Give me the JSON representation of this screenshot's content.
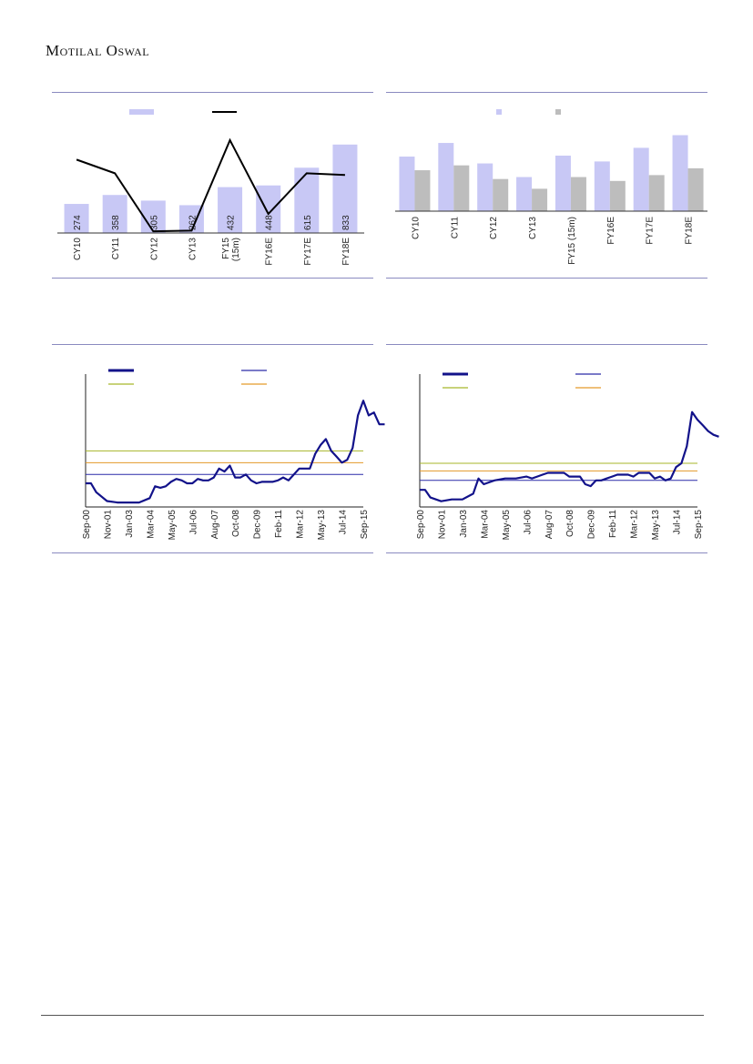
{
  "header": {
    "brand": "Motilal Oswal"
  },
  "colors": {
    "panel_rule": "#8a8ac0",
    "bar_lavender": "#c8c8f5",
    "bar_grey": "#bdbdbd",
    "line_black": "#000000",
    "pe_line": "#12128a",
    "avg_line": "#2a2aa8",
    "sd_green": "#a7b62a",
    "sd_orange": "#e39a2a"
  },
  "chart_data": [
    {
      "id": "chart1",
      "type": "bar",
      "categories": [
        "CY10",
        "CY11",
        "CY12",
        "CY13",
        "FY15 (15m)",
        "FY16E",
        "FY17E",
        "FY18E"
      ],
      "series": [
        {
          "type": "bar",
          "values": [
            274,
            358,
            305,
            262,
            432,
            448,
            615,
            833
          ],
          "labels": [
            "274",
            "358",
            "305",
            "262",
            "432",
            "448",
            "615",
            "833"
          ]
        },
        {
          "type": "line",
          "values": [
            21.5,
            17.5,
            0.5,
            0.7,
            27.2,
            5.6,
            17.5,
            17.0
          ]
        }
      ],
      "bar_ylim": [
        0,
        900
      ],
      "line_ylim": [
        0,
        28
      ],
      "legend_position": "top"
    },
    {
      "id": "chart2",
      "type": "bar",
      "categories": [
        "CY10",
        "CY11",
        "CY12",
        "CY13",
        "FY15 (15m)",
        "FY16E",
        "FY17E",
        "FY18E"
      ],
      "series": [
        {
          "values": [
            56,
            70,
            49,
            35,
            57,
            51,
            65,
            78
          ]
        },
        {
          "values": [
            42,
            47,
            33,
            23,
            35,
            31,
            37,
            44
          ]
        }
      ],
      "ylim": [
        0,
        85
      ],
      "legend_position": "top"
    },
    {
      "id": "chart3",
      "type": "line",
      "x_tick_labels": [
        "Sep-00",
        "Nov-01",
        "Jan-03",
        "Mar-04",
        "May-05",
        "Jul-06",
        "Aug-07",
        "Oct-08",
        "Dec-09",
        "Feb-11",
        "Mar-12",
        "May-13",
        "Jul-14",
        "Sep-15"
      ],
      "ylim": [
        0,
        45
      ],
      "series": [
        {
          "key": "pe",
          "x": [
            0,
            0.25,
            0.5,
            1,
            1.5,
            2,
            2.5,
            3,
            3.25,
            3.5,
            3.75,
            4,
            4.25,
            4.5,
            4.75,
            5,
            5.25,
            5.5,
            5.75,
            6,
            6.25,
            6.5,
            6.75,
            7,
            7.25,
            7.5,
            7.75,
            8,
            8.25,
            8.5,
            8.75,
            9,
            9.25,
            9.5,
            9.75,
            10,
            10.25,
            10.5,
            10.75,
            11,
            11.25,
            11.5,
            11.75,
            12,
            12.25,
            12.5,
            12.75,
            13,
            13.25,
            13.5,
            13.75,
            14
          ],
          "values": [
            8,
            8,
            5,
            2,
            1.5,
            1.5,
            1.5,
            3,
            7,
            6.5,
            7,
            8.5,
            9.5,
            9,
            8,
            8,
            9.5,
            9,
            9,
            10,
            13,
            12,
            14,
            10,
            10,
            11,
            9,
            8,
            8.5,
            8.5,
            8.5,
            9,
            10,
            9,
            11,
            13,
            13,
            13,
            18,
            21,
            23,
            19,
            17,
            15,
            16,
            20,
            31,
            36,
            31,
            32,
            28,
            28
          ]
        },
        {
          "key": "avg",
          "values": [
            11,
            11
          ]
        },
        {
          "key": "plus1sd",
          "values": [
            15,
            15
          ]
        },
        {
          "key": "plus2sd",
          "values": [
            19,
            19
          ]
        }
      ],
      "legend_position": "top"
    },
    {
      "id": "chart4",
      "type": "line",
      "x_tick_labels": [
        "Sep-00",
        "Nov-01",
        "Jan-03",
        "Mar-04",
        "May-05",
        "Jul-06",
        "Aug-07",
        "Oct-08",
        "Dec-09",
        "Feb-11",
        "Mar-12",
        "May-13",
        "Jul-14",
        "Sep-15"
      ],
      "ylim": [
        0,
        7
      ],
      "series": [
        {
          "key": "pb",
          "x": [
            0,
            0.25,
            0.5,
            1,
            1.5,
            2,
            2.5,
            2.75,
            3,
            3.25,
            3.5,
            4,
            4.5,
            5,
            5.25,
            5.5,
            5.75,
            6,
            6.25,
            6.5,
            6.75,
            7,
            7.25,
            7.5,
            7.75,
            8,
            8.25,
            8.5,
            8.75,
            9,
            9.25,
            9.5,
            9.75,
            10,
            10.25,
            10.5,
            10.75,
            11,
            11.25,
            11.5,
            11.75,
            12,
            12.25,
            12.5,
            12.75,
            13,
            13.25,
            13.5,
            13.75,
            14
          ],
          "values": [
            0.9,
            0.9,
            0.5,
            0.3,
            0.4,
            0.4,
            0.7,
            1.5,
            1.2,
            1.3,
            1.4,
            1.5,
            1.5,
            1.6,
            1.5,
            1.6,
            1.7,
            1.8,
            1.8,
            1.8,
            1.8,
            1.6,
            1.6,
            1.6,
            1.2,
            1.1,
            1.4,
            1.4,
            1.5,
            1.6,
            1.7,
            1.7,
            1.7,
            1.6,
            1.8,
            1.8,
            1.8,
            1.5,
            1.6,
            1.4,
            1.5,
            2.1,
            2.3,
            3.2,
            5.0,
            4.6,
            4.3,
            4.0,
            3.8,
            3.7
          ]
        },
        {
          "key": "avg",
          "values": [
            1.4,
            1.4
          ]
        },
        {
          "key": "plus1sd",
          "values": [
            1.9,
            1.9
          ]
        },
        {
          "key": "plus2sd",
          "values": [
            2.3,
            2.3
          ]
        }
      ],
      "legend_position": "top"
    }
  ]
}
